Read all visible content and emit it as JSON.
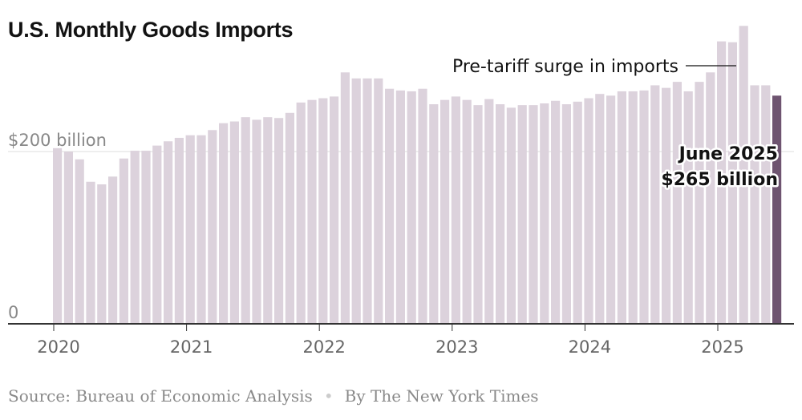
{
  "title": "U.S. Monthly Goods Imports",
  "source_label": "Source:",
  "source_name": "Bureau of Economic Analysis",
  "byline": "By The New York Times",
  "colors": {
    "bar": "#dcd2dc",
    "highlight": "#6e5470",
    "axis": "#333333",
    "grid": "#dddddd"
  },
  "chart_data": {
    "type": "bar",
    "title": "U.S. Monthly Goods Imports",
    "xlabel": "",
    "ylabel": "",
    "ylim": [
      0,
      350
    ],
    "y_ticks": [
      {
        "value": 0,
        "label": "0"
      },
      {
        "value": 200,
        "label": "$200 billion"
      }
    ],
    "x_ticks": [
      {
        "index": 0,
        "label": "2020"
      },
      {
        "index": 12,
        "label": "2021"
      },
      {
        "index": 24,
        "label": "2022"
      },
      {
        "index": 36,
        "label": "2023"
      },
      {
        "index": 48,
        "label": "2024"
      },
      {
        "index": 60,
        "label": "2025"
      }
    ],
    "start": "2020-01",
    "end": "2025-06",
    "unit": "billion USD",
    "values": [
      204,
      200,
      191,
      165,
      162,
      171,
      192,
      201,
      201,
      207,
      212,
      216,
      219,
      219,
      225,
      233,
      235,
      240,
      237,
      240,
      239,
      245,
      257,
      260,
      262,
      264,
      292,
      285,
      285,
      285,
      273,
      271,
      270,
      273,
      255,
      260,
      264,
      260,
      254,
      261,
      255,
      251,
      254,
      254,
      256,
      259,
      255,
      258,
      262,
      267,
      265,
      270,
      270,
      271,
      277,
      274,
      281,
      270,
      281,
      292,
      328,
      327,
      346,
      277,
      277,
      265
    ],
    "highlight_index": 65,
    "annotations": [
      {
        "text": "Pre-tariff surge in imports",
        "target_index": 62
      },
      {
        "text_line1": "June 2025",
        "text_line2": "$265 billion",
        "target_index": 65
      }
    ]
  }
}
